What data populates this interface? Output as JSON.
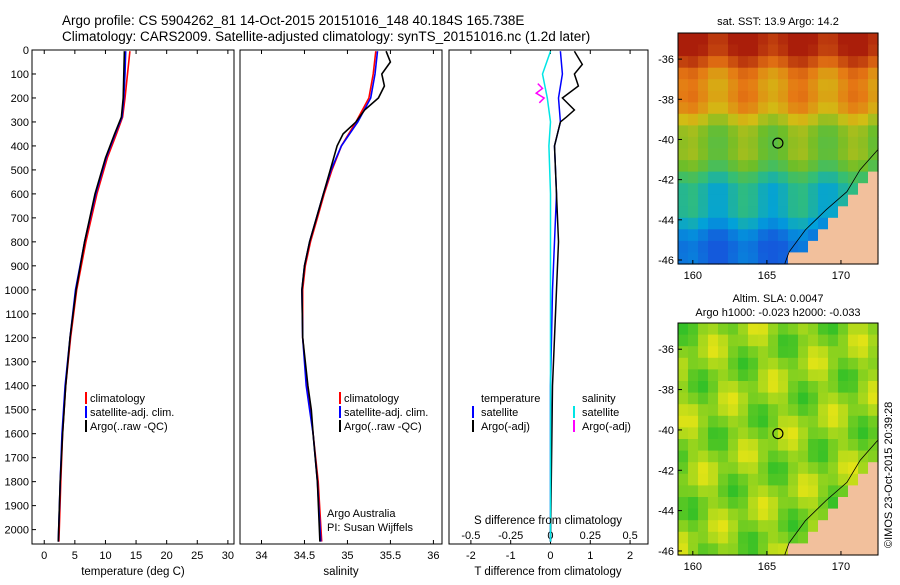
{
  "header": {
    "line1": "Argo profile: CS 5904262_81 14-Oct-2015 20151016_148 40.184S 165.738E",
    "line2": "Climatology: CARS2009. Satellite-adjusted climatology: synTS_20151016.nc (1.2d later)"
  },
  "colors": {
    "climatology": "#ff0000",
    "satellite": "#0000ff",
    "argo": "#000000",
    "s_satellite": "#00e5e5",
    "s_argo": "#ff00ff",
    "land": "#f2c09c"
  },
  "chart_data": [
    {
      "type": "line",
      "panel": "temperature",
      "xlabel": "temperature (deg C)",
      "ylabel": "",
      "xlim": [
        -2,
        31
      ],
      "ylim": [
        2060,
        0
      ],
      "xticks": [
        0,
        5,
        10,
        15,
        20,
        25,
        30
      ],
      "yticks": [
        0,
        100,
        200,
        300,
        400,
        500,
        600,
        700,
        800,
        900,
        1000,
        1100,
        1200,
        1300,
        1400,
        1500,
        1600,
        1700,
        1800,
        1900,
        2000
      ],
      "legend": [
        "climatology",
        "satellite-adj. clim.",
        "Argo(..raw -QC)"
      ],
      "series": [
        {
          "name": "climatology",
          "depth": [
            5,
            100,
            200,
            280,
            350,
            450,
            600,
            800,
            1000,
            1200,
            1400,
            1600,
            1800,
            2050
          ],
          "values": [
            14.0,
            13.6,
            13.2,
            12.8,
            11.8,
            10.3,
            8.6,
            6.8,
            5.3,
            4.3,
            3.5,
            3.0,
            2.7,
            2.4
          ]
        },
        {
          "name": "satellite-adj. clim.",
          "depth": [
            5,
            100,
            200,
            280,
            350,
            450,
            600,
            800,
            1000,
            1200,
            1400,
            1600,
            1800,
            2050
          ],
          "values": [
            13.3,
            13.2,
            13.0,
            12.7,
            11.6,
            10.1,
            8.4,
            6.6,
            5.1,
            4.2,
            3.4,
            2.9,
            2.6,
            2.3
          ]
        },
        {
          "name": "Argo(..raw -QC)",
          "depth": [
            5,
            100,
            200,
            280,
            350,
            450,
            600,
            800,
            1000,
            1200,
            1400,
            1600,
            1800,
            2050
          ],
          "values": [
            13.1,
            13.0,
            12.9,
            12.6,
            11.5,
            10.0,
            8.3,
            6.6,
            5.2,
            4.2,
            3.5,
            3.0,
            2.6,
            2.3
          ]
        }
      ]
    },
    {
      "type": "line",
      "panel": "salinity",
      "xlabel": "salinity",
      "ylabel": "",
      "xlim": [
        33.75,
        36.1
      ],
      "ylim": [
        2060,
        0
      ],
      "xticks": [
        34,
        34.5,
        35,
        35.5,
        36
      ],
      "yticks": [],
      "legend": [
        "climatology",
        "satellite-adj. clim.",
        "Argo(..raw -QC)"
      ],
      "series": [
        {
          "name": "climatology",
          "depth": [
            5,
            100,
            200,
            300,
            400,
            500,
            600,
            700,
            800,
            900,
            1000,
            1200,
            1400,
            1500,
            1600,
            1800,
            2050
          ],
          "values": [
            35.33,
            35.3,
            35.25,
            35.1,
            34.93,
            34.82,
            34.73,
            34.65,
            34.57,
            34.51,
            34.48,
            34.48,
            34.53,
            34.57,
            34.6,
            34.66,
            34.7
          ]
        },
        {
          "name": "satellite-adj. clim.",
          "depth": [
            5,
            100,
            200,
            300,
            400,
            500,
            600,
            700,
            800,
            900,
            1000,
            1200,
            1400,
            1500,
            1600,
            1800,
            2050
          ],
          "values": [
            35.35,
            35.32,
            35.27,
            35.12,
            34.93,
            34.81,
            34.72,
            34.64,
            34.56,
            34.5,
            34.47,
            34.48,
            34.52,
            34.56,
            34.6,
            34.65,
            34.69
          ]
        },
        {
          "name": "Argo(..raw -QC)",
          "depth": [
            5,
            50,
            100,
            150,
            200,
            250,
            300,
            350,
            400,
            500,
            600,
            700,
            800,
            900,
            1000,
            1200,
            1400,
            1500,
            1600,
            1800,
            2050
          ],
          "values": [
            35.45,
            35.5,
            35.4,
            35.43,
            35.36,
            35.2,
            35.1,
            34.95,
            34.88,
            34.8,
            34.72,
            34.64,
            34.56,
            34.5,
            34.47,
            34.48,
            34.54,
            34.58,
            34.6,
            34.65,
            34.68
          ]
        }
      ]
    },
    {
      "type": "line",
      "panel": "difference",
      "xlabel": "T difference from climatology",
      "xlabel_top": "S difference from climatology",
      "xlim": [
        -2.55,
        2.45
      ],
      "ylim": [
        2060,
        0
      ],
      "xticks": [
        -2,
        -1,
        0,
        1,
        2
      ],
      "xticks_top": [
        -0.5,
        -0.25,
        0,
        0.25,
        0.5
      ],
      "legend_temperature": [
        "temperature",
        "satellite",
        "Argo(-adj)"
      ],
      "legend_salinity": [
        "salinity",
        "satellite",
        "Argo(-adj)"
      ],
      "series": [
        {
          "name": "T satellite",
          "depth": [
            5,
            100,
            200,
            300,
            400,
            600,
            800,
            1000,
            1400,
            2050
          ],
          "values": [
            0.25,
            0.3,
            0.2,
            0.25,
            0.1,
            0.15,
            0.1,
            0.05,
            0.0,
            0.0
          ]
        },
        {
          "name": "T Argo(-adj)",
          "depth": [
            5,
            60,
            100,
            150,
            200,
            250,
            280,
            300,
            400,
            600,
            800,
            1000,
            1400,
            2050
          ],
          "values": [
            0.6,
            0.8,
            0.6,
            0.7,
            0.3,
            0.6,
            0.4,
            0.25,
            0.1,
            0.15,
            0.2,
            0.15,
            0.05,
            0.0
          ]
        },
        {
          "name": "S satellite",
          "depth": [
            5,
            100,
            200,
            300,
            400,
            600,
            800,
            1000,
            1400,
            2050
          ],
          "values": [
            0.0,
            -0.05,
            -0.02,
            0.0,
            -0.01,
            0.0,
            0.0,
            0.0,
            0.0,
            0.0
          ]
        },
        {
          "name": "S Argo(-adj)",
          "depth": [
            140,
            160,
            180,
            200,
            220
          ],
          "values": [
            -0.08,
            -0.05,
            -0.09,
            -0.04,
            -0.07
          ]
        }
      ]
    },
    {
      "type": "heatmap",
      "panel": "sst-map",
      "title": "sat. SST: 13.9  Argo: 14.2",
      "xlim": [
        159,
        172.5
      ],
      "ylim": [
        -46.2,
        -34.7
      ],
      "xticks": [
        160,
        165,
        170
      ],
      "yticks": [
        -36,
        -38,
        -40,
        -42,
        -44,
        -46
      ],
      "marker": {
        "lon": 165.74,
        "lat": -40.18
      }
    },
    {
      "type": "heatmap",
      "panel": "sla-map",
      "title": "Altim. SLA: 0.0047",
      "subtitle": "Argo h1000: -0.023 h2000: -0.033",
      "xlim": [
        159,
        172.5
      ],
      "ylim": [
        -46.2,
        -34.7
      ],
      "xticks": [
        160,
        165,
        170
      ],
      "yticks": [
        -36,
        -38,
        -40,
        -42,
        -44,
        -46
      ],
      "marker": {
        "lon": 165.74,
        "lat": -40.18
      }
    }
  ],
  "annotations": {
    "argo_line1": "Argo Australia",
    "argo_line2": "PI: Susan Wijffels",
    "credit": "©IMOS 23-Oct-2015 20:39:28"
  }
}
